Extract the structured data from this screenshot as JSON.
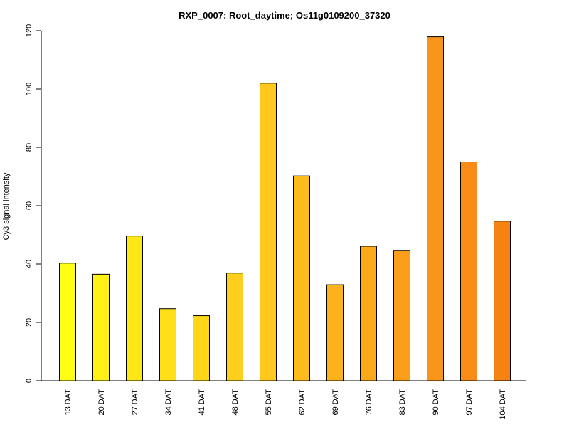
{
  "chart_data": {
    "type": "bar",
    "title": "RXP_0007: Root_daytime; Os11g0109200_37320",
    "xlabel": "",
    "ylabel": "Cy3 signal intensity",
    "ylim": [
      0,
      120
    ],
    "yticks": [
      0,
      20,
      40,
      60,
      80,
      100,
      120
    ],
    "categories": [
      "13 DAT",
      "20 DAT",
      "27 DAT",
      "34 DAT",
      "41 DAT",
      "48 DAT",
      "55 DAT",
      "62 DAT",
      "69 DAT",
      "76 DAT",
      "83 DAT",
      "90 DAT",
      "97 DAT",
      "104 DAT"
    ],
    "values": [
      40.3,
      36.5,
      49.6,
      24.7,
      22.3,
      36.9,
      102.0,
      70.2,
      32.9,
      46.1,
      44.7,
      117.9,
      75.0,
      54.7
    ],
    "colors": [
      "#FFFF14",
      "#FFF015",
      "#FFE617",
      "#FFDF18",
      "#FED71B",
      "#FECF1C",
      "#FEC81C",
      "#FDBC1B",
      "#FCB21B",
      "#FBA81A",
      "#FA9F19",
      "#F99518",
      "#F88C16",
      "#F78214"
    ],
    "grid": false,
    "legend": "none"
  }
}
